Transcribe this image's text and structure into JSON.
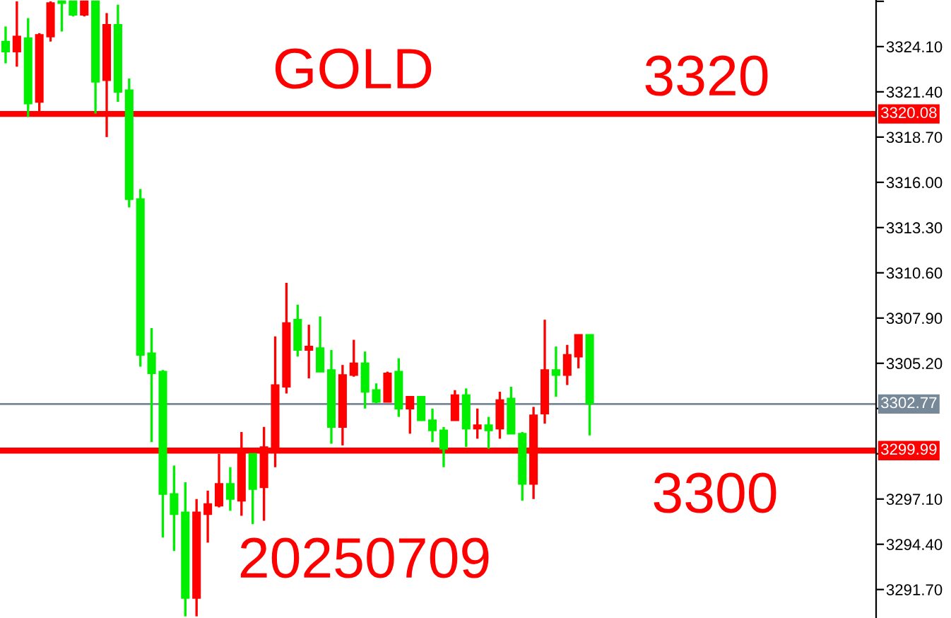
{
  "chart_data": {
    "type": "candlestick",
    "categories": [
      null,
      null,
      null,
      null,
      null,
      null,
      null,
      null,
      null,
      null,
      null,
      null,
      null,
      null,
      null,
      null,
      null,
      null,
      null,
      null,
      null,
      null,
      null,
      null,
      null,
      null,
      null,
      null,
      null,
      null,
      null,
      null,
      null,
      null,
      null,
      null,
      null,
      null,
      null,
      null,
      null,
      null,
      null,
      null,
      null,
      null,
      null,
      null,
      null,
      null,
      null,
      null,
      null,
      null,
      null,
      null,
      null,
      null,
      null,
      null,
      null,
      null,
      null,
      null,
      null,
      null,
      null,
      null,
      null,
      null,
      null,
      null,
      null,
      null,
      null,
      null,
      null,
      null
    ],
    "ohlc": [
      [
        3324.4,
        3325.3,
        3323.1,
        3323.8
      ],
      [
        3323.8,
        3326.8,
        3322.9,
        3324.7
      ],
      [
        3324.6,
        3325.8,
        3319.9,
        3320.7
      ],
      [
        3320.8,
        3324.9,
        3320.2,
        3324.8
      ],
      [
        3324.7,
        3326.8,
        3324.4,
        3326.7
      ],
      [
        3326.8,
        3326.8,
        3325.0,
        3326.7
      ],
      [
        3326.8,
        3326.8,
        3325.9,
        3326.0
      ],
      [
        3326.0,
        3326.8,
        3325.9,
        3326.8
      ],
      [
        3326.8,
        3326.8,
        3320.1,
        3322.0
      ],
      [
        3322.1,
        3326.1,
        3318.7,
        3325.4
      ],
      [
        3325.4,
        3326.6,
        3320.8,
        3321.4
      ],
      [
        3321.5,
        3322.2,
        3314.5,
        3315.0
      ],
      [
        3315.0,
        3315.6,
        3305.0,
        3305.7
      ],
      [
        3305.8,
        3307.3,
        3300.5,
        3304.6
      ],
      [
        3304.7,
        3304.8,
        3294.8,
        3297.4
      ],
      [
        3297.4,
        3299.1,
        3294.0,
        3296.2
      ],
      [
        3296.3,
        3298.1,
        3290.1,
        3291.2
      ],
      [
        3291.2,
        3297.1,
        3290.1,
        3296.3
      ],
      [
        3296.2,
        3297.6,
        3294.5,
        3296.8
      ],
      [
        3296.7,
        3299.8,
        3296.6,
        3298.0
      ],
      [
        3298.0,
        3299.0,
        3296.4,
        3297.1
      ],
      [
        3297.0,
        3301.1,
        3296.1,
        3299.9
      ],
      [
        3299.8,
        3299.8,
        3295.6,
        3297.7
      ],
      [
        3297.8,
        3301.4,
        3295.8,
        3300.2
      ],
      [
        3300.2,
        3306.8,
        3299.0,
        3303.9
      ],
      [
        3303.8,
        3310.0,
        3303.4,
        3307.6
      ],
      [
        3307.8,
        3308.7,
        3305.6,
        3306.0
      ],
      [
        3306.0,
        3307.5,
        3304.3,
        3306.2
      ],
      [
        3306.1,
        3308.0,
        3304.7,
        3304.7
      ],
      [
        3304.8,
        3306.0,
        3300.4,
        3301.4
      ],
      [
        3301.4,
        3305.1,
        3300.3,
        3304.5
      ],
      [
        3304.5,
        3306.6,
        3304.4,
        3305.2
      ],
      [
        3305.2,
        3305.9,
        3302.5,
        3303.5
      ],
      [
        3303.6,
        3304.0,
        3302.8,
        3302.9
      ],
      [
        3302.9,
        3304.7,
        3302.9,
        3304.6
      ],
      [
        3304.7,
        3305.5,
        3302.0,
        3302.5
      ],
      [
        3302.5,
        3303.2,
        3301.0,
        3303.2
      ],
      [
        3303.2,
        3303.2,
        3301.8,
        3301.8
      ],
      [
        3301.8,
        3302.5,
        3300.5,
        3301.2
      ],
      [
        3301.2,
        3301.4,
        3299.0,
        3300.1
      ],
      [
        3301.8,
        3303.6,
        3301.8,
        3303.3
      ],
      [
        3303.3,
        3303.7,
        3300.2,
        3301.3
      ],
      [
        3301.3,
        3302.5,
        3300.7,
        3301.5
      ],
      [
        3301.5,
        3302.0,
        3300.1,
        3301.2
      ],
      [
        3301.3,
        3303.5,
        3300.7,
        3303.0
      ],
      [
        3303.1,
        3303.8,
        3301.0,
        3301.0
      ],
      [
        3301.0,
        3301.1,
        3297.0,
        3298.0
      ],
      [
        3298.0,
        3302.6,
        3297.1,
        3302.1
      ],
      [
        3302.2,
        3307.8,
        3301.6,
        3304.8
      ],
      [
        3304.8,
        3306.2,
        3303.2,
        3304.5
      ],
      [
        3304.5,
        3306.3,
        3303.9,
        3305.7
      ],
      [
        3305.6,
        3306.9,
        3304.9,
        3306.9
      ],
      [
        3306.9,
        3306.9,
        3300.9,
        3302.8
      ],
      null,
      null,
      null,
      null,
      null,
      null,
      null,
      null,
      null,
      null,
      null,
      null,
      null,
      null,
      null,
      null,
      null,
      null,
      null,
      null,
      null,
      null,
      null,
      null,
      null
    ],
    "colors": [
      "#00ee00",
      "#ff0000",
      "#00ee00",
      "#ff0000",
      "#ff0000",
      "#00ee00",
      "#00ee00",
      "#ff0000",
      "#00ee00",
      "#ff0000",
      "#00ee00",
      "#00ee00",
      "#00ee00",
      "#00ee00",
      "#00ee00",
      "#00ee00",
      "#00ee00",
      "#ff0000",
      "#ff0000",
      "#ff0000",
      "#00ee00",
      "#ff0000",
      "#00ee00",
      "#ff0000",
      "#ff0000",
      "#ff0000",
      "#00ee00",
      "#ff0000",
      "#00ee00",
      "#00ee00",
      "#ff0000",
      "#ff0000",
      "#00ee00",
      "#00ee00",
      "#ff0000",
      "#00ee00",
      "#ff0000",
      "#00ee00",
      "#00ee00",
      "#00ee00",
      "#ff0000",
      "#00ee00",
      "#ff0000",
      "#00ee00",
      "#ff0000",
      "#00ee00",
      "#00ee00",
      "#ff0000",
      "#ff0000",
      "#00ee00",
      "#ff0000",
      "#ff0000",
      "#00ee00",
      null,
      null,
      null,
      null,
      null,
      null,
      null,
      null,
      null,
      null,
      null,
      null,
      null,
      null,
      null,
      null,
      null,
      null,
      null,
      null,
      null,
      null,
      null,
      null,
      null
    ],
    "ylim": [
      3290.0,
      3326.88
    ],
    "yticks": [
      {
        "value": 3291.7,
        "label": "3291.70"
      },
      {
        "value": 3294.4,
        "label": "3294.40"
      },
      {
        "value": 3297.1,
        "label": "3297.10"
      },
      {
        "value": 3299.8,
        "label": null
      },
      {
        "value": 3302.5,
        "label": null
      },
      {
        "value": 3305.2,
        "label": "3305.20"
      },
      {
        "value": 3307.9,
        "label": "3307.90"
      },
      {
        "value": 3310.6,
        "label": "3310.60"
      },
      {
        "value": 3313.3,
        "label": "3313.30"
      },
      {
        "value": 3316.0,
        "label": "3316.00"
      },
      {
        "value": 3318.7,
        "label": "3318.70"
      },
      {
        "value": 3321.4,
        "label": "3321.40"
      },
      {
        "value": 3324.1,
        "label": "3324.10"
      },
      {
        "value": 3326.8,
        "label": null
      }
    ],
    "ref_lines": [
      {
        "axis": "y",
        "value": 3320.08,
        "label": "3320.08",
        "color": "#ff0000"
      },
      {
        "axis": "y",
        "value": 3299.99,
        "label": "3299.99",
        "color": "#ff0000"
      },
      {
        "axis": "y",
        "value": 3302.77,
        "label": "3302.77",
        "color": "#778899"
      }
    ],
    "annotations": [
      "GOLD",
      "3320",
      "3300",
      "20250709"
    ],
    "tick_labels": "y",
    "grid": false
  }
}
